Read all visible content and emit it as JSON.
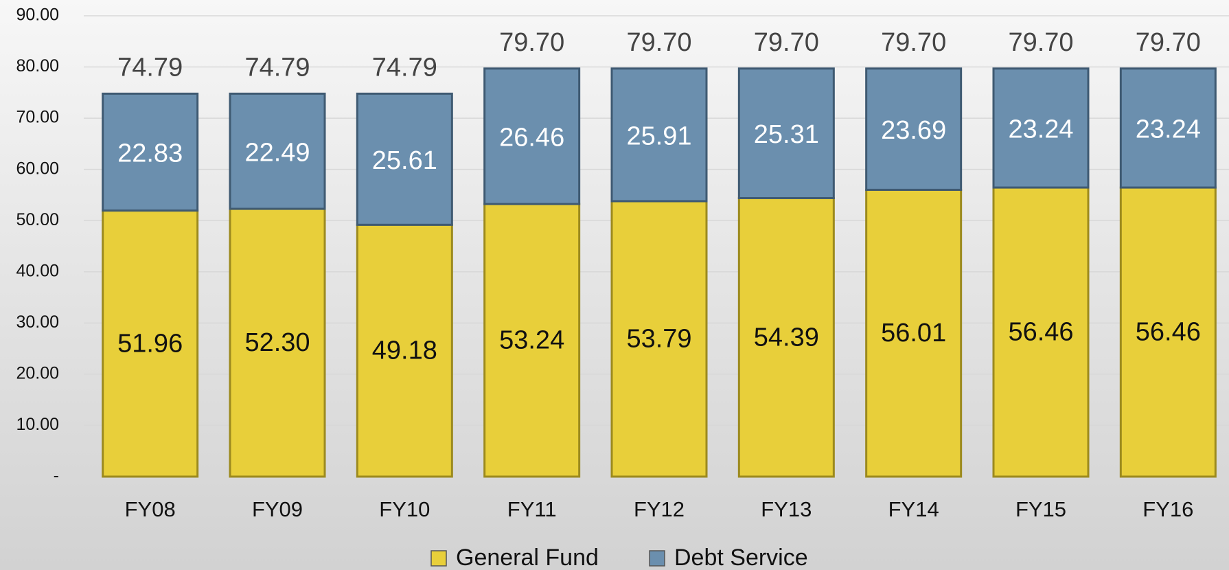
{
  "chart_data": {
    "type": "stacked-bar",
    "categories": [
      "FY08",
      "FY09",
      "FY10",
      "FY11",
      "FY12",
      "FY13",
      "FY14",
      "FY15",
      "FY16"
    ],
    "series": [
      {
        "name": "General Fund",
        "color": "#e8cf3a",
        "values": [
          51.96,
          52.3,
          49.18,
          53.24,
          53.79,
          54.39,
          56.01,
          56.46,
          56.46
        ],
        "value_labels": [
          "51.96",
          "52.30",
          "49.18",
          "53.24",
          "53.79",
          "54.39",
          "56.01",
          "56.46",
          "56.46"
        ]
      },
      {
        "name": "Debt Service",
        "color": "#6b8fae",
        "values": [
          22.83,
          22.49,
          25.61,
          26.46,
          25.91,
          25.31,
          23.69,
          23.24,
          23.24
        ],
        "value_labels": [
          "22.83",
          "22.49",
          "25.61",
          "26.46",
          "25.91",
          "25.31",
          "23.69",
          "23.24",
          "23.24"
        ]
      }
    ],
    "totals": [
      74.79,
      74.79,
      74.79,
      79.7,
      79.7,
      79.7,
      79.7,
      79.7,
      79.7
    ],
    "total_labels": [
      "74.79",
      "74.79",
      "74.79",
      "79.70",
      "79.70",
      "79.70",
      "79.70",
      "79.70",
      "79.70"
    ],
    "ylim": [
      0,
      90
    ],
    "yticks": [
      {
        "value": 0,
        "label": "-"
      },
      {
        "value": 10,
        "label": "10.00"
      },
      {
        "value": 20,
        "label": "20.00"
      },
      {
        "value": 30,
        "label": "30.00"
      },
      {
        "value": 40,
        "label": "40.00"
      },
      {
        "value": 50,
        "label": "50.00"
      },
      {
        "value": 60,
        "label": "60.00"
      },
      {
        "value": 70,
        "label": "70.00"
      },
      {
        "value": 80,
        "label": "80.00"
      },
      {
        "value": 90,
        "label": "90.00"
      }
    ],
    "grid": true,
    "legend": "bottom"
  }
}
